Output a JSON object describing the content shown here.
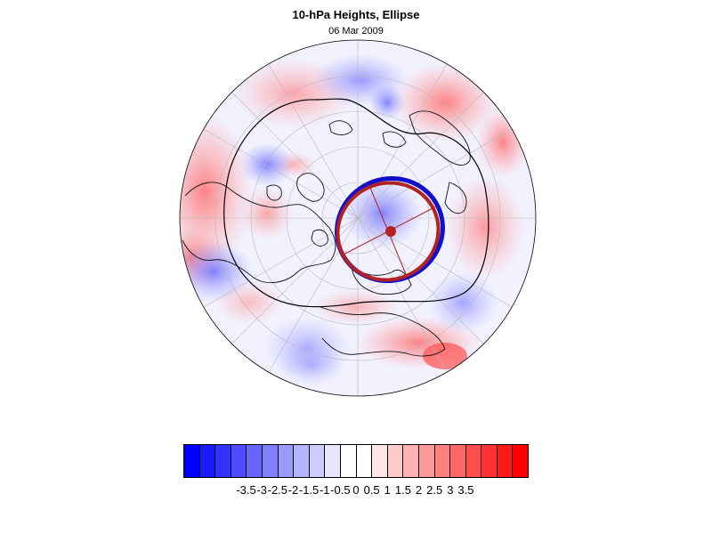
{
  "title": "10-hPa Heights, Ellipse",
  "subtitle": "06 Mar 2009",
  "colorbar": {
    "colors": [
      "#0000ff",
      "#1a1aff",
      "#3333ff",
      "#4d4dff",
      "#6666ff",
      "#8080ff",
      "#9999ff",
      "#b3b3ff",
      "#ccccff",
      "#e6e6ff",
      "#ffffff",
      "#ffffff",
      "#ffe6e6",
      "#ffcccc",
      "#ffb3b3",
      "#ff9999",
      "#ff8080",
      "#ff6666",
      "#ff4d4d",
      "#ff3333",
      "#ff1a1a",
      "#ff0000"
    ],
    "tick_labels": [
      "-3.5",
      "-3",
      "-2.5",
      "-2",
      "-1.5",
      "-1",
      "-0.5",
      "0",
      "0.5",
      "1",
      "1.5",
      "2",
      "2.5",
      "3",
      "3.5"
    ],
    "range": [
      -3.5,
      3.5
    ]
  },
  "legend_colors": {
    "ellipse_fit": "#b22222",
    "contour": "#1010cc",
    "axes": "#b22222"
  }
}
